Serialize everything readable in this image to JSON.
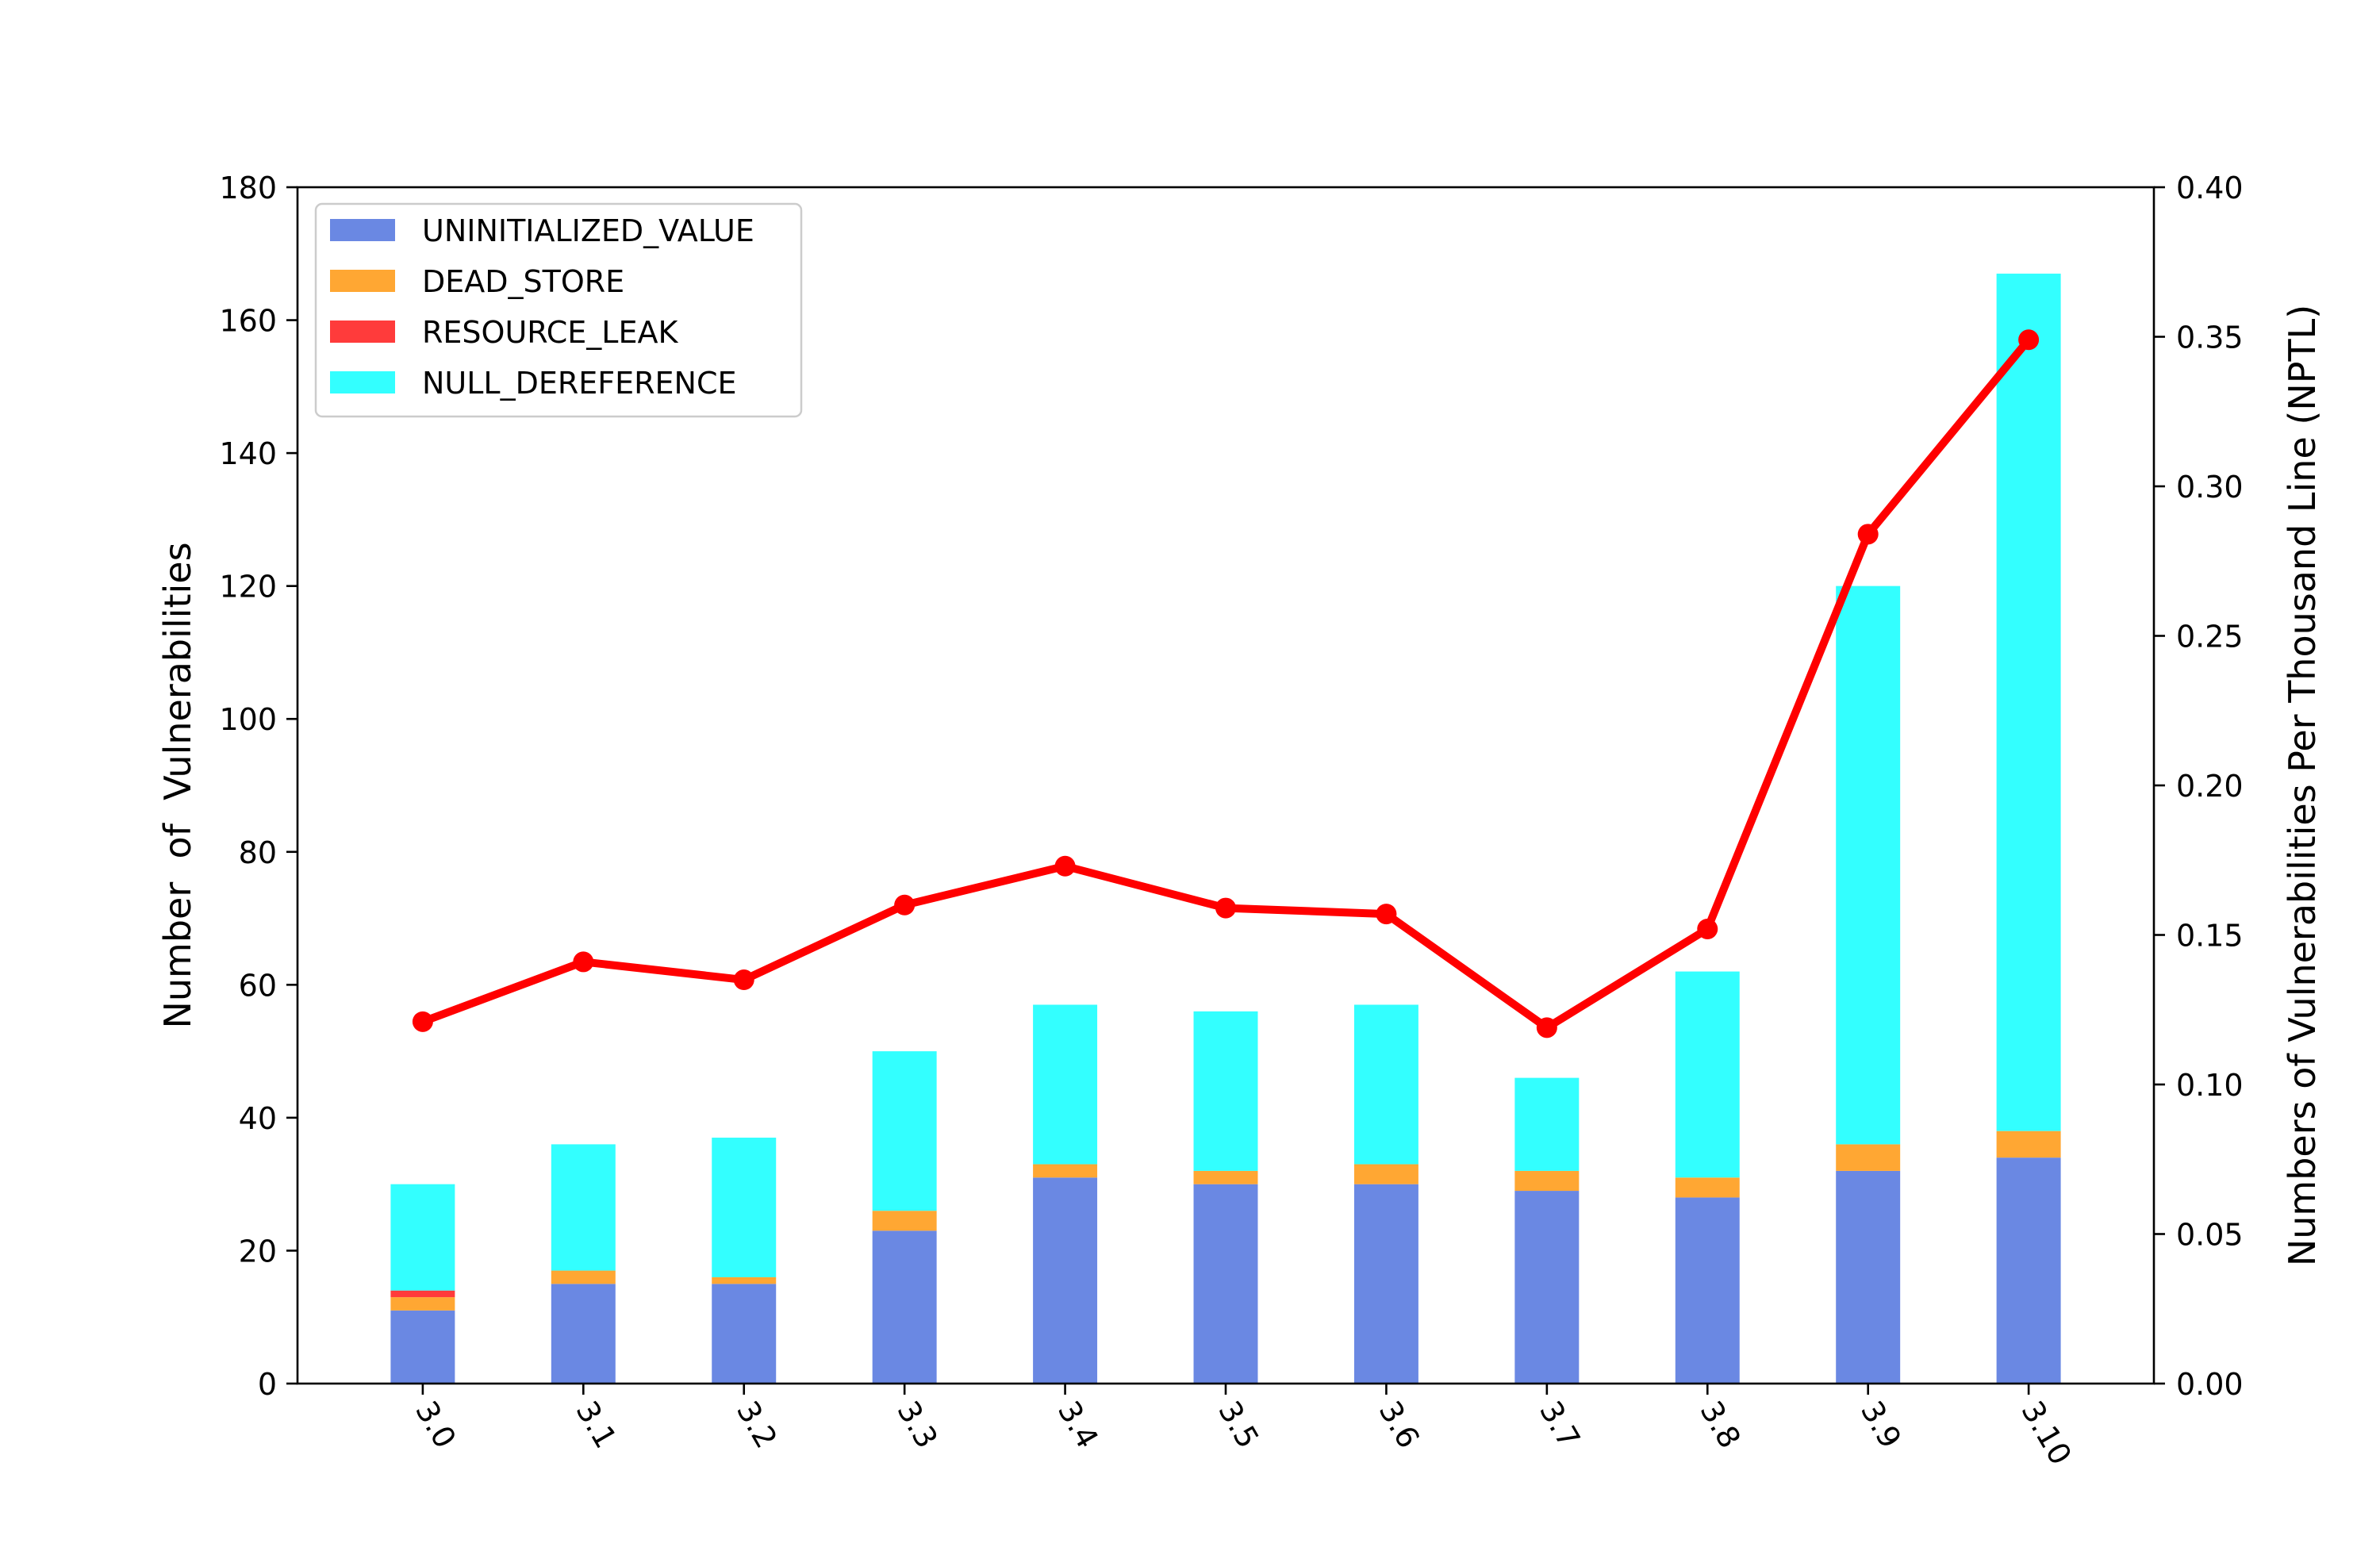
{
  "chart_data": {
    "type": "bar",
    "stacked": true,
    "categories": [
      "3.0",
      "3.1",
      "3.2",
      "3.3",
      "3.4",
      "3.5",
      "3.6",
      "3.7",
      "3.8",
      "3.9",
      "3.10"
    ],
    "series": [
      {
        "name": "UNINITIALIZED_VALUE",
        "color": "#6a88e3",
        "values": [
          11,
          15,
          15,
          23,
          31,
          30,
          30,
          29,
          28,
          32,
          34
        ]
      },
      {
        "name": "DEAD_STORE",
        "color": "#ffa733",
        "values": [
          2,
          2,
          1,
          3,
          2,
          2,
          3,
          3,
          3,
          4,
          4
        ]
      },
      {
        "name": "RESOURCE_LEAK",
        "color": "#ff3b3b",
        "values": [
          1,
          0,
          0,
          0,
          0,
          0,
          0,
          0,
          0,
          0,
          0
        ]
      },
      {
        "name": "NULL_DEREFERENCE",
        "color": "#33ffff",
        "values": [
          16,
          19,
          21,
          24,
          24,
          24,
          24,
          14,
          31,
          84,
          129
        ]
      }
    ],
    "line_series": {
      "color": "#ff0000",
      "axis": "right",
      "values": [
        0.121,
        0.141,
        0.135,
        0.16,
        0.173,
        0.159,
        0.157,
        0.119,
        0.152,
        0.284,
        0.349
      ]
    },
    "ylabel": "Number  of  Vulnerabilities",
    "ylim": [
      0,
      180
    ],
    "yticks": [
      "0",
      "20",
      "40",
      "60",
      "80",
      "100",
      "120",
      "140",
      "160",
      "180"
    ],
    "y2label": "Numbers of Vulnerabilities Per Thousand Line (NPTL)",
    "y2lim": [
      0,
      0.4
    ],
    "y2ticks": [
      "0.00",
      "0.05",
      "0.10",
      "0.15",
      "0.20",
      "0.25",
      "0.30",
      "0.35",
      "0.40"
    ],
    "legend_position": "top-left",
    "grid": false
  }
}
